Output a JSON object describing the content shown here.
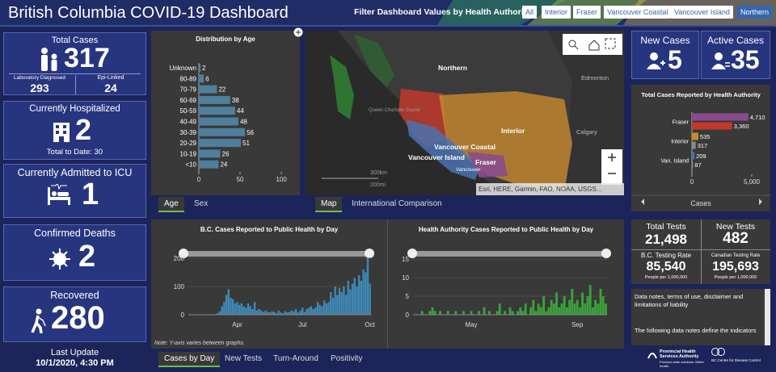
{
  "header": {
    "title": "British Columbia COVID-19 Dashboard",
    "filter_label": "Filter Dashboard Values by Health Authority:",
    "filters": [
      "All",
      "Interior",
      "Fraser",
      "Vancouver Coastal",
      "Vancouver Island",
      "Northern"
    ]
  },
  "cards": {
    "total_cases": {
      "label": "Total Cases",
      "value": "317",
      "lab_label": "Laboratory Diagnosed",
      "lab_value": "293",
      "epi_label": "Epi-Linked",
      "epi_value": "24"
    },
    "hospitalized": {
      "label": "Currently Hospitalized",
      "value": "2",
      "sub": "Total to Date: 30"
    },
    "icu": {
      "label": "Currently Admitted to ICU",
      "value": "1"
    },
    "deaths": {
      "label": "Confirmed Deaths",
      "value": "2"
    },
    "recovered": {
      "label": "Recovered",
      "value": "280"
    },
    "last_update": {
      "label": "Last Update",
      "value": "10/1/2020, 4:30 PM"
    },
    "new_cases": {
      "label": "New Cases",
      "value": "5"
    },
    "active_cases": {
      "label": "Active Cases",
      "value": "35"
    }
  },
  "age_chart": {
    "type": "bar",
    "orientation": "horizontal",
    "title": "Distribution by Age",
    "categories": [
      "Unknown",
      "80-89",
      "70-79",
      "60-69",
      "50-59",
      "40-49",
      "30-39",
      "20-29",
      "10-19",
      "<10"
    ],
    "values": [
      2,
      6,
      22,
      38,
      44,
      48,
      56,
      51,
      26,
      24
    ],
    "color": "#4f7f9c",
    "xlim": [
      0,
      100
    ],
    "xticks": [
      0,
      50,
      100
    ],
    "tabs": [
      "Age",
      "Sex"
    ]
  },
  "map": {
    "labels": [
      "Northern",
      "Edmonton",
      "Interior",
      "Calgary",
      "Vancouver Coastal",
      "Vancouver Island",
      "Fraser",
      "Vancouver",
      "Queen Charlotte Sound"
    ],
    "scale": [
      "300km",
      "200mi"
    ],
    "attribution": "Esri, HERE, Garmin, FAO, NOAA, USGS...",
    "tabs": [
      "Map",
      "International Comparison"
    ]
  },
  "authority_chart": {
    "type": "bar",
    "orientation": "horizontal",
    "title": "Total Cases Reported by Health Authority",
    "categories": [
      "Fraser",
      "Interior",
      "Van. Island"
    ],
    "series": [
      {
        "colors": [
          "#8a4b8e",
          "#c98a2f",
          "#4a72b0"
        ],
        "values": [
          4710,
          535,
          209
        ],
        "value_labels": [
          "4,710",
          "535",
          "209"
        ]
      },
      {
        "colors": [
          "#c0392b",
          "#8a8a8a",
          "#8a8a8a"
        ],
        "values": [
          3360,
          317,
          87
        ],
        "value_labels": [
          "3,360",
          "317",
          "87"
        ]
      }
    ],
    "xlim": [
      0,
      5000
    ],
    "xticks": [
      0,
      {
        "value": 5000,
        "label": "5,000"
      }
    ],
    "tab": "Cases"
  },
  "tests": {
    "total_label": "Total Tests",
    "total_value": "21,498",
    "new_label": "New Tests",
    "new_value": "482",
    "bc_label": "B.C. Testing Rate",
    "bc_value": "85,540",
    "bc_unit": "People per 1,000,000",
    "ca_label": "Canadian Testing Rate",
    "ca_value": "195,693",
    "ca_unit": "People per 1,000,000"
  },
  "notes": {
    "heading": "Data notes, terms of use, disclaimer and limitations of liability",
    "body": "The following data notes define the indicators"
  },
  "daily_charts": [
    {
      "type": "bar",
      "title": "B.C. Cases Reported to Public Health by Day",
      "color": "#3f88b5",
      "ylim": [
        0,
        220
      ],
      "yticks": [
        0,
        100,
        200
      ],
      "categories": [
        null,
        null,
        null,
        null,
        null,
        null,
        null,
        null,
        null,
        null,
        null,
        null,
        null,
        null,
        null,
        null,
        null,
        null,
        null,
        null,
        null,
        null,
        "Apr",
        null,
        null,
        null,
        null,
        null,
        null,
        null,
        null,
        null,
        null,
        null,
        null,
        null,
        null,
        null,
        null,
        null,
        null,
        null,
        null,
        null,
        null,
        null,
        null,
        null,
        null,
        null,
        null,
        null,
        "Jul",
        null,
        null,
        null,
        null,
        null,
        null,
        null,
        null,
        null,
        null,
        null,
        null,
        null,
        null,
        null,
        null,
        null,
        null,
        null,
        null,
        null,
        null,
        null,
        null,
        null,
        null,
        null,
        null,
        null,
        null,
        "Oct"
      ],
      "values": [
        0,
        1,
        0,
        0,
        0,
        1,
        0,
        0,
        0,
        1,
        0,
        1,
        2,
        6,
        12,
        30,
        45,
        70,
        90,
        60,
        55,
        40,
        45,
        35,
        40,
        30,
        25,
        40,
        30,
        20,
        45,
        15,
        20,
        15,
        10,
        15,
        10,
        8,
        12,
        10,
        5,
        15,
        8,
        5,
        12,
        8,
        10,
        15,
        12,
        20,
        8,
        15,
        25,
        10,
        20,
        25,
        30,
        20,
        25,
        45,
        35,
        30,
        50,
        40,
        45,
        80,
        60,
        100,
        70,
        95,
        80,
        100,
        70,
        120,
        90,
        110,
        130,
        100,
        140,
        120,
        160,
        150,
        200,
        110
      ]
    },
    {
      "type": "bar",
      "title": "Health Authority Cases Reported to Public Health by Day",
      "color": "#3aa33a",
      "ylim": [
        0,
        17
      ],
      "yticks": [
        0,
        5,
        10,
        15
      ],
      "categories": [
        null,
        null,
        null,
        null,
        null,
        null,
        null,
        null,
        null,
        null,
        null,
        null,
        null,
        null,
        null,
        null,
        null,
        null,
        null,
        null,
        null,
        null,
        "May",
        null,
        null,
        null,
        null,
        null,
        null,
        null,
        null,
        null,
        null,
        null,
        null,
        null,
        null,
        null,
        null,
        null,
        null,
        null,
        null,
        null,
        null,
        null,
        null,
        null,
        null,
        null,
        null,
        null,
        null,
        null,
        null,
        null,
        null,
        null,
        null,
        null,
        null,
        null,
        null,
        "Sep",
        null,
        null,
        null,
        null,
        null,
        null,
        null,
        null,
        null,
        null,
        null
      ],
      "values": [
        0,
        0,
        0,
        1,
        0,
        0,
        1,
        2,
        1,
        0,
        1,
        0,
        0,
        1,
        0,
        0,
        1,
        0,
        0,
        1,
        0,
        0,
        1,
        0,
        0,
        1,
        0,
        2,
        0,
        1,
        0,
        0,
        1,
        3,
        0,
        1,
        0,
        2,
        1,
        0,
        1,
        2,
        1,
        3,
        0,
        2,
        4,
        1,
        3,
        2,
        5,
        1,
        2,
        4,
        3,
        6,
        2,
        3,
        5,
        2,
        4,
        7,
        3,
        4,
        2,
        6,
        3,
        5,
        8,
        2,
        4,
        3,
        7,
        5,
        3
      ]
    }
  ],
  "daily_note": "Note: Y-axis varies between graphs.",
  "daily_tabs": [
    "Cases by Day",
    "New Tests",
    "Turn-Around",
    "Positivity"
  ],
  "footer_logos": {
    "phsa": "Provincial Health Services Authority",
    "phsa_tagline": "Province-wide solutions. Better health.",
    "bccdc": "BC Centre for Disease Control"
  }
}
